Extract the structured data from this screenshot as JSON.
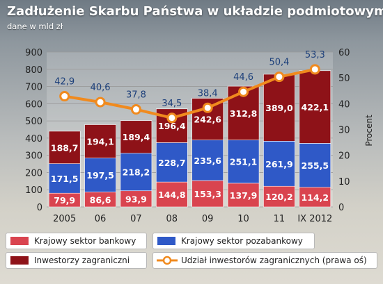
{
  "title": "Zadłużenie Skarbu Państwa w układzie podmiotowym",
  "subtitle": "dane w mld zł",
  "colors": {
    "bank": "#d9444f",
    "nonbank": "#2f59c7",
    "foreign": "#8e1218",
    "line": "#f08a1e",
    "label": "#1c3f7a"
  },
  "legend": {
    "bank": "Krajowy sektor bankowy",
    "nonbank": "Krajowy sektor pozabankowy",
    "foreign": "Inwestorzy zagraniczni",
    "line": "Udział inwestorów zagranicznych (prawa oś)"
  },
  "chart_data": {
    "type": "bar",
    "stacked": true,
    "categories": [
      "2005",
      "06",
      "07",
      "08",
      "09",
      "10",
      "11",
      "IX 2012"
    ],
    "series": [
      {
        "name": "Krajowy sektor bankowy",
        "values": [
          79.9,
          86.6,
          93.9,
          144.8,
          153.3,
          137.9,
          120.2,
          114.2
        ],
        "labels": [
          "79,9",
          "86,6",
          "93,9",
          "144,8",
          "153,3",
          "137,9",
          "120,2",
          "114,2"
        ]
      },
      {
        "name": "Krajowy sektor pozabankowy",
        "values": [
          171.5,
          197.5,
          218.2,
          228.7,
          235.6,
          251.1,
          261.9,
          255.5
        ],
        "labels": [
          "171,5",
          "197,5",
          "218,2",
          "228,7",
          "235,6",
          "251,1",
          "261,9",
          "255,5"
        ]
      },
      {
        "name": "Inwestorzy zagraniczni",
        "values": [
          188.7,
          194.1,
          189.4,
          196.4,
          242.6,
          312.8,
          389.0,
          422.1
        ],
        "labels": [
          "188,7",
          "194,1",
          "189,4",
          "196,4",
          "242,6",
          "312,8",
          "389,0",
          "422,1"
        ]
      }
    ],
    "line_series": {
      "name": "Udział inwestorów zagranicznych (prawa oś)",
      "values": [
        42.9,
        40.6,
        37.8,
        34.5,
        38.4,
        44.6,
        50.4,
        53.3
      ],
      "labels": [
        "42,9",
        "40,6",
        "37,8",
        "34,5",
        "38,4",
        "44,6",
        "50,4",
        "53,3"
      ],
      "axis": "right"
    },
    "ylim": [
      0,
      900
    ],
    "yticks": [
      0,
      100,
      200,
      300,
      400,
      500,
      600,
      700,
      800,
      900
    ],
    "y2lim": [
      0,
      60
    ],
    "y2ticks": [
      0,
      10,
      20,
      30,
      40,
      50,
      60
    ],
    "y2label": "Procent",
    "grid": true,
    "legend_position": "bottom"
  }
}
